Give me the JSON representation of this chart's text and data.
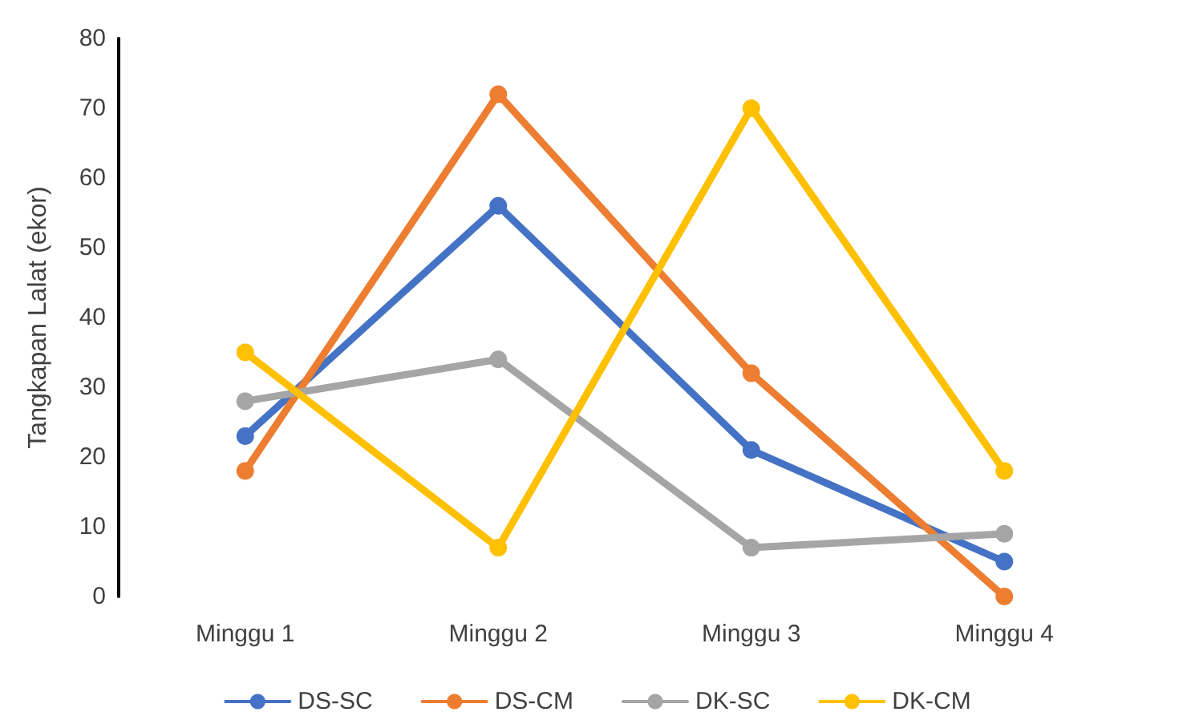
{
  "chart_data": {
    "type": "line",
    "ylabel": "Tangkapan Lalat (ekor)",
    "categories": [
      "Minggu 1",
      "Minggu 2",
      "Minggu 3",
      "Minggu 4"
    ],
    "series": [
      {
        "name": "DS-SC",
        "color": "#4472c4",
        "values": [
          23,
          56,
          21,
          5
        ]
      },
      {
        "name": "DS-CM",
        "color": "#ed7d31",
        "values": [
          18,
          72,
          32,
          0
        ]
      },
      {
        "name": "DK-SC",
        "color": "#a5a5a5",
        "values": [
          28,
          34,
          7,
          9
        ]
      },
      {
        "name": "DK-CM",
        "color": "#ffc000",
        "values": [
          35,
          7,
          70,
          18
        ]
      }
    ],
    "ylim": [
      0,
      80
    ],
    "yticks": [
      0,
      10,
      20,
      30,
      40,
      50,
      60,
      70,
      80
    ],
    "grid": false,
    "legend": "bottom",
    "marker": "circle",
    "line_style": "solid"
  }
}
